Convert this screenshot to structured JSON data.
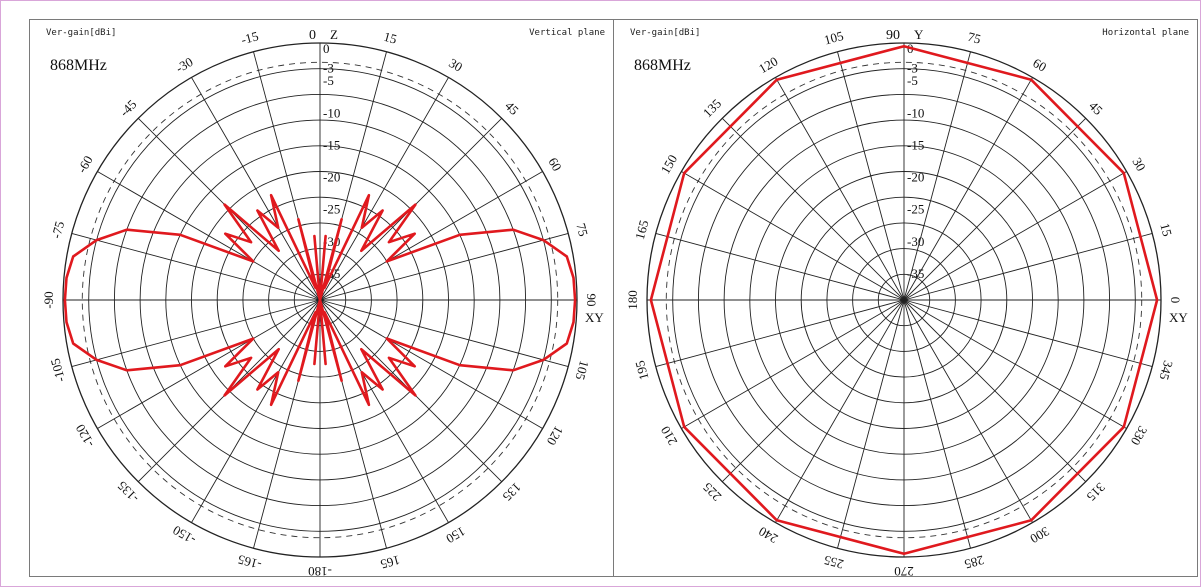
{
  "chart_data": [
    {
      "type": "polar",
      "panel": "left",
      "ylabel": "Ver-gain[dBi]",
      "title": "Vertical plane",
      "frequency_label": "868MHz",
      "axis_top_label": "0",
      "axis_top_letter": "Z",
      "axis_right_letter": "XY",
      "angle_labels": [
        {
          "angle": 0,
          "text": ""
        },
        {
          "angle": 15,
          "text": "15"
        },
        {
          "angle": 30,
          "text": "30"
        },
        {
          "angle": 45,
          "text": "45"
        },
        {
          "angle": 60,
          "text": "60"
        },
        {
          "angle": 75,
          "text": "75"
        },
        {
          "angle": 90,
          "text": "90"
        },
        {
          "angle": 105,
          "text": "105"
        },
        {
          "angle": 120,
          "text": "120"
        },
        {
          "angle": 135,
          "text": "135"
        },
        {
          "angle": 150,
          "text": "150"
        },
        {
          "angle": 165,
          "text": "165"
        },
        {
          "angle": 180,
          "text": "-180"
        },
        {
          "angle": 195,
          "text": "-165"
        },
        {
          "angle": 210,
          "text": "-150"
        },
        {
          "angle": 225,
          "text": "-135"
        },
        {
          "angle": 240,
          "text": "-120"
        },
        {
          "angle": 255,
          "text": "-105"
        },
        {
          "angle": 270,
          "text": "-90"
        },
        {
          "angle": 285,
          "text": "-75"
        },
        {
          "angle": 300,
          "text": "-60"
        },
        {
          "angle": 315,
          "text": "-45"
        },
        {
          "angle": 330,
          "text": "-30"
        },
        {
          "angle": 345,
          "text": "-15"
        }
      ],
      "radial_ticks": [
        "0",
        "-3",
        "-5",
        "-10",
        "-15",
        "-20",
        "-25",
        "-30",
        "-35"
      ],
      "r_min_db": -40,
      "r_max_db": 0,
      "dashed_ring_db": -3,
      "series": [
        {
          "color": "#e0191e",
          "theta_deg": [
            0,
            5,
            10,
            15,
            20,
            25,
            30,
            35,
            40,
            45,
            50,
            55,
            60,
            65,
            70,
            75,
            80,
            85,
            90,
            95,
            100,
            105,
            110,
            115,
            120,
            125,
            130,
            135,
            140,
            145,
            150,
            155,
            160,
            165,
            170,
            175,
            180
          ],
          "gain_db": [
            -40,
            -30,
            -40,
            -27,
            -38,
            -22,
            -27,
            -23,
            -30,
            -19,
            -26,
            -22,
            -28,
            -16,
            -8,
            -4,
            -1,
            -0.4,
            -0.3,
            -0.4,
            -1,
            -4,
            -8,
            -16,
            -28,
            -22,
            -26,
            -19,
            -30,
            -23,
            -27,
            -22,
            -38,
            -27,
            -40,
            -30,
            -40
          ],
          "symmetric": true
        }
      ]
    },
    {
      "type": "polar",
      "panel": "right",
      "ylabel": "Ver-gain[dBi]",
      "title": "Horizontal plane",
      "frequency_label": "868MHz",
      "axis_top_label": "90",
      "axis_top_letter": "Y",
      "axis_right_letter": "XY",
      "angle_labels": [
        {
          "angle": 0,
          "text": ""
        },
        {
          "angle": 15,
          "text": "75"
        },
        {
          "angle": 30,
          "text": "60"
        },
        {
          "angle": 45,
          "text": "45"
        },
        {
          "angle": 60,
          "text": "30"
        },
        {
          "angle": 75,
          "text": "15"
        },
        {
          "angle": 90,
          "text": "0"
        },
        {
          "angle": 105,
          "text": "345"
        },
        {
          "angle": 120,
          "text": "330"
        },
        {
          "angle": 135,
          "text": "315"
        },
        {
          "angle": 150,
          "text": "300"
        },
        {
          "angle": 165,
          "text": "285"
        },
        {
          "angle": 180,
          "text": "270"
        },
        {
          "angle": 195,
          "text": "255"
        },
        {
          "angle": 210,
          "text": "240"
        },
        {
          "angle": 225,
          "text": "225"
        },
        {
          "angle": 240,
          "text": "210"
        },
        {
          "angle": 255,
          "text": "195"
        },
        {
          "angle": 270,
          "text": "180"
        },
        {
          "angle": 285,
          "text": "165"
        },
        {
          "angle": 300,
          "text": "150"
        },
        {
          "angle": 315,
          "text": "135"
        },
        {
          "angle": 330,
          "text": "120"
        },
        {
          "angle": 345,
          "text": "105"
        }
      ],
      "radial_ticks": [
        "0",
        "-3",
        "-5",
        "-10",
        "-15",
        "-20",
        "-25",
        "-30",
        "-35"
      ],
      "r_min_db": -40,
      "r_max_db": 0,
      "dashed_ring_db": -3,
      "series": [
        {
          "color": "#e0191e",
          "theta_deg": [
            0,
            30,
            60,
            90,
            120,
            150,
            180,
            210,
            240,
            270,
            300,
            330,
            360
          ],
          "gain_db": [
            -0.5,
            -0.4,
            -0.5,
            -0.6,
            -0.5,
            -0.4,
            -0.5,
            -0.4,
            -0.5,
            -0.6,
            -0.5,
            -0.4,
            -0.5
          ],
          "symmetric": false
        }
      ]
    }
  ]
}
